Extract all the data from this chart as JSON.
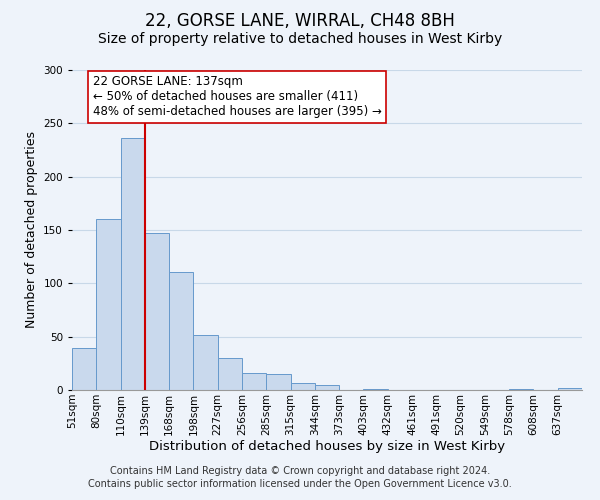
{
  "title": "22, GORSE LANE, WIRRAL, CH48 8BH",
  "subtitle": "Size of property relative to detached houses in West Kirby",
  "xlabel": "Distribution of detached houses by size in West Kirby",
  "ylabel": "Number of detached properties",
  "footer_lines": [
    "Contains HM Land Registry data © Crown copyright and database right 2024.",
    "Contains public sector information licensed under the Open Government Licence v3.0."
  ],
  "bar_labels": [
    "51sqm",
    "80sqm",
    "110sqm",
    "139sqm",
    "168sqm",
    "198sqm",
    "227sqm",
    "256sqm",
    "285sqm",
    "315sqm",
    "344sqm",
    "373sqm",
    "403sqm",
    "432sqm",
    "461sqm",
    "491sqm",
    "520sqm",
    "549sqm",
    "578sqm",
    "608sqm",
    "637sqm"
  ],
  "bar_values": [
    39,
    160,
    236,
    147,
    111,
    52,
    30,
    16,
    15,
    7,
    5,
    0,
    1,
    0,
    0,
    0,
    0,
    0,
    1,
    0,
    2
  ],
  "bar_color": "#c9d9ed",
  "bar_edgecolor": "#6699cc",
  "vline_x_index": 3,
  "vline_color": "#cc0000",
  "annotation_text": "22 GORSE LANE: 137sqm\n← 50% of detached houses are smaller (411)\n48% of semi-detached houses are larger (395) →",
  "annotation_box_edgecolor": "#cc0000",
  "annotation_box_facecolor": "#ffffff",
  "ylim": [
    0,
    300
  ],
  "yticks": [
    0,
    50,
    100,
    150,
    200,
    250,
    300
  ],
  "grid_color": "#c8d8e8",
  "background_color": "#eef3fa",
  "title_fontsize": 12,
  "subtitle_fontsize": 10,
  "xlabel_fontsize": 9.5,
  "ylabel_fontsize": 9,
  "tick_fontsize": 7.5,
  "annotation_fontsize": 8.5,
  "footer_fontsize": 7
}
